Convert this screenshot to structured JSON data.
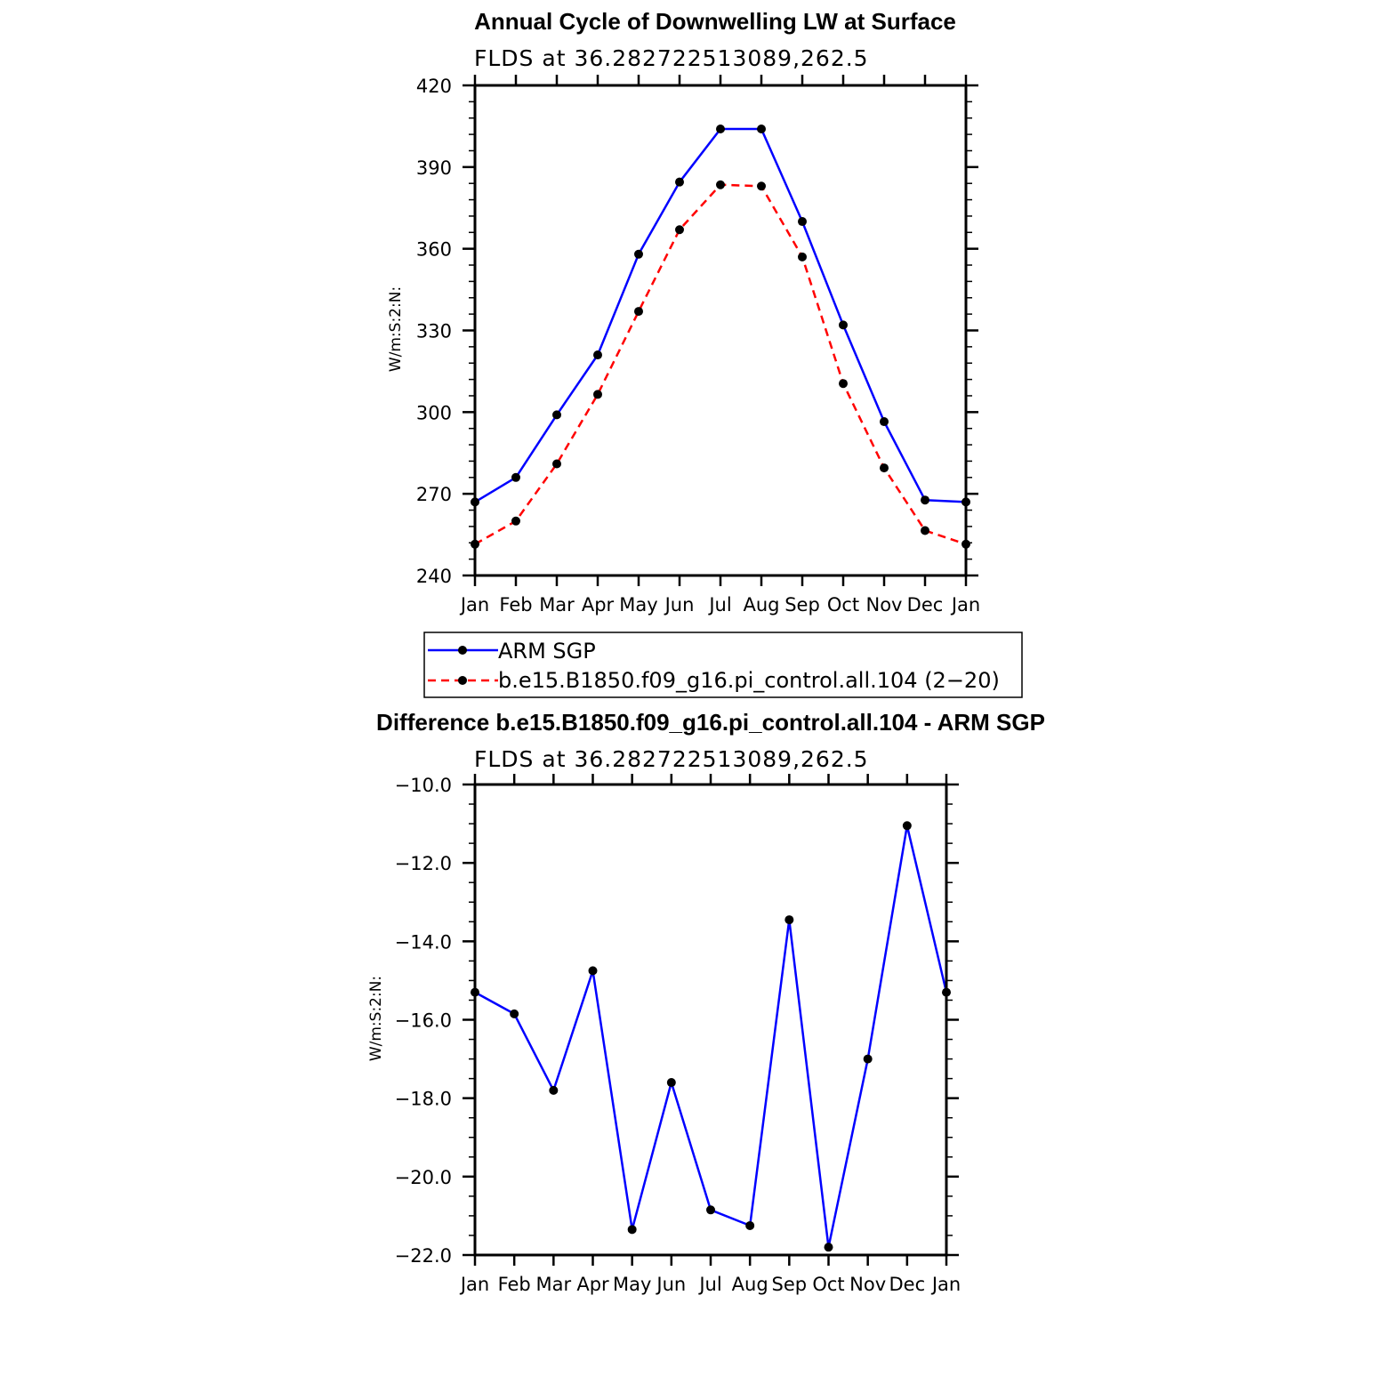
{
  "chart_data": [
    {
      "type": "line",
      "title": "Annual Cycle of Downwelling LW at Surface",
      "subtitle": "FLDS at 36.282722513089,262.5",
      "ylabel": "W/m:S:2:N:",
      "xlabel": "",
      "categories": [
        "Jan",
        "Feb",
        "Mar",
        "Apr",
        "May",
        "Jun",
        "Jul",
        "Aug",
        "Sep",
        "Oct",
        "Nov",
        "Dec",
        "Jan"
      ],
      "ylim": [
        240,
        420
      ],
      "yticks": [
        "240",
        "270",
        "300",
        "330",
        "360",
        "390",
        "420"
      ],
      "series": [
        {
          "name": "ARM SGP",
          "color": "#0000ff",
          "dash": "solid",
          "values": [
            267,
            276,
            299,
            321,
            358,
            384.5,
            404,
            404,
            370,
            332,
            296.5,
            267.7,
            267
          ]
        },
        {
          "name": "b.e15.B1850.f09_g16.pi_control.all.104 (2−20)",
          "color": "#ff0000",
          "dash": "dashed",
          "values": [
            251.5,
            260,
            281,
            306.5,
            337,
            367,
            383.5,
            383,
            357,
            310.5,
            279.5,
            256.5,
            251.5
          ]
        }
      ],
      "legend": "below"
    },
    {
      "type": "line",
      "title": "Difference b.e15.B1850.f09_g16.pi_control.all.104 - ARM SGP",
      "subtitle": "FLDS at 36.282722513089,262.5",
      "ylabel": "W/m:S:2:N:",
      "xlabel": "",
      "categories": [
        "Jan",
        "Feb",
        "Mar",
        "Apr",
        "May",
        "Jun",
        "Jul",
        "Aug",
        "Sep",
        "Oct",
        "Nov",
        "Dec",
        "Jan"
      ],
      "ylim": [
        -22.0,
        -10.0
      ],
      "yticks": [
        "−22.0",
        "−20.0",
        "−18.0",
        "−16.0",
        "−14.0",
        "−12.0",
        "−10.0"
      ],
      "series": [
        {
          "color": "#0000ff",
          "dash": "solid",
          "values": [
            -15.3,
            -15.85,
            -17.8,
            -14.75,
            -21.35,
            -17.6,
            -20.85,
            -21.25,
            -13.45,
            -21.8,
            -17.0,
            -11.05,
            -15.3
          ]
        }
      ]
    }
  ]
}
